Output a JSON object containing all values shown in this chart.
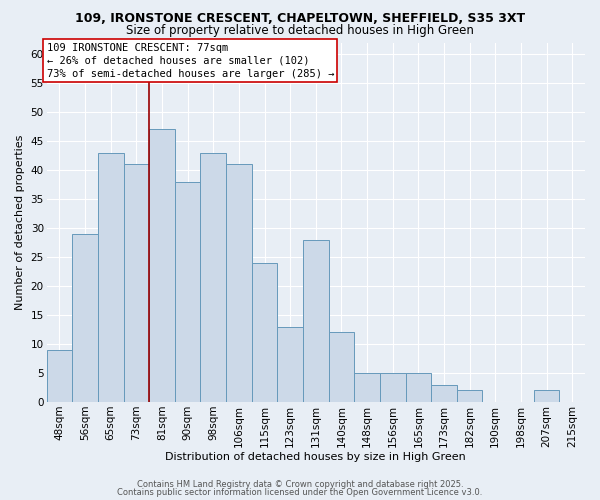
{
  "title": "109, IRONSTONE CRESCENT, CHAPELTOWN, SHEFFIELD, S35 3XT",
  "subtitle": "Size of property relative to detached houses in High Green",
  "xlabel": "Distribution of detached houses by size in High Green",
  "ylabel": "Number of detached properties",
  "bar_color": "#ccd9e8",
  "bar_edge_color": "#6699bb",
  "background_color": "#e8eef5",
  "plot_bg_color": "#e8eef5",
  "grid_color": "#ffffff",
  "categories": [
    "48sqm",
    "56sqm",
    "65sqm",
    "73sqm",
    "81sqm",
    "90sqm",
    "98sqm",
    "106sqm",
    "115sqm",
    "123sqm",
    "131sqm",
    "140sqm",
    "148sqm",
    "156sqm",
    "165sqm",
    "173sqm",
    "182sqm",
    "190sqm",
    "198sqm",
    "207sqm",
    "215sqm"
  ],
  "values": [
    9,
    29,
    43,
    41,
    47,
    38,
    43,
    41,
    24,
    13,
    28,
    12,
    5,
    5,
    5,
    3,
    2,
    0,
    0,
    2,
    0
  ],
  "ylim": [
    0,
    62
  ],
  "yticks": [
    0,
    5,
    10,
    15,
    20,
    25,
    30,
    35,
    40,
    45,
    50,
    55,
    60
  ],
  "vline_color": "#990000",
  "vline_x_index": 3.5,
  "annotation_title": "109 IRONSTONE CRESCENT: 77sqm",
  "annotation_line1": "← 26% of detached houses are smaller (102)",
  "annotation_line2": "73% of semi-detached houses are larger (285) →",
  "annotation_box_color": "#ffffff",
  "annotation_border_color": "#cc0000",
  "footer1": "Contains HM Land Registry data © Crown copyright and database right 2025.",
  "footer2": "Contains public sector information licensed under the Open Government Licence v3.0.",
  "title_fontsize": 9,
  "subtitle_fontsize": 8.5,
  "axis_label_fontsize": 8,
  "tick_fontsize": 7.5,
  "annotation_fontsize": 7.5,
  "footer_fontsize": 6
}
